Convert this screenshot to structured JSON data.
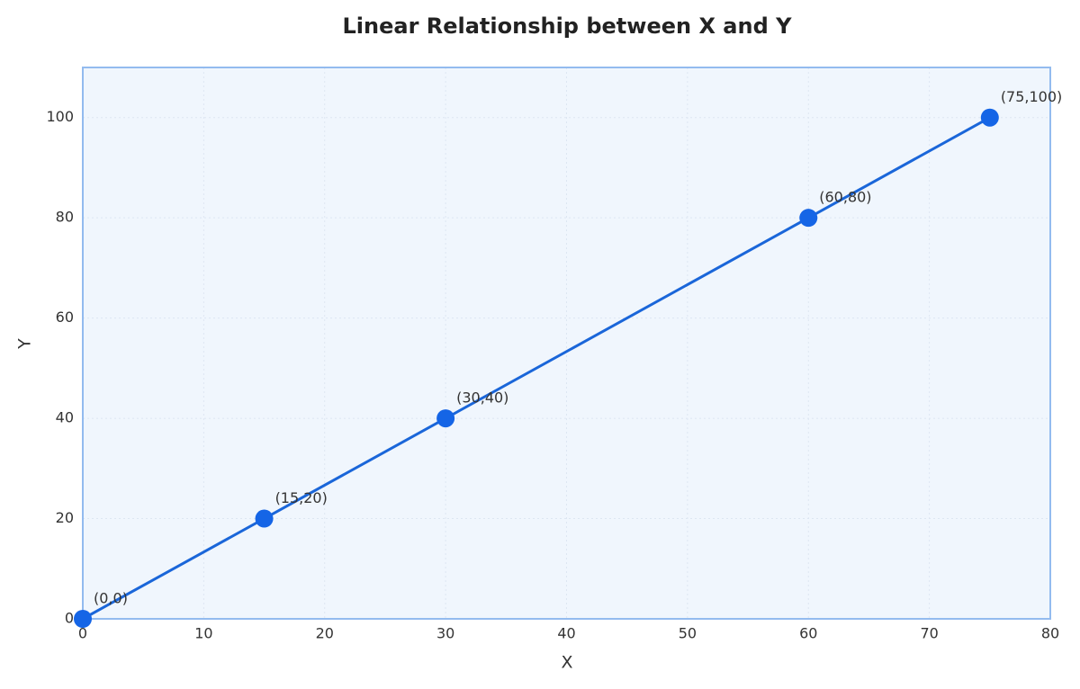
{
  "chart_data": {
    "type": "line",
    "title": "Linear Relationship between X and Y",
    "x_label": "X",
    "y_label": "Y",
    "x": [
      0,
      15,
      30,
      60,
      75
    ],
    "series": [
      {
        "name": "Y",
        "color": "#1a66d9",
        "values": [
          0,
          20,
          40,
          80,
          100
        ],
        "value_labels": [
          "(0,0)",
          "(15,20)",
          "(30,40)",
          "(60,80)",
          "(75,100)"
        ]
      }
    ],
    "xlim": [
      0,
      80
    ],
    "xticks": [
      0,
      10,
      20,
      30,
      40,
      50,
      60,
      70,
      80
    ],
    "ylim": [
      0,
      110
    ],
    "yticks": [
      0,
      20,
      40,
      60,
      80,
      100
    ],
    "grid": true
  }
}
